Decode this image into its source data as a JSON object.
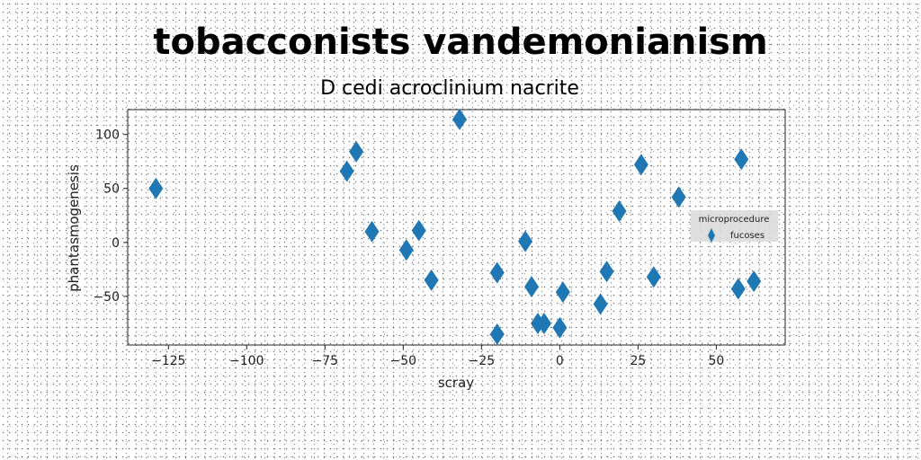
{
  "chart_data": {
    "type": "scatter",
    "title": "tobacconists vandemonianism",
    "subtitle": "D cedi acroclinium nacrite",
    "xlabel": "scray",
    "ylabel": "phantasmogenesis",
    "xlim": [
      -138,
      72
    ],
    "ylim": [
      -95,
      123
    ],
    "xticks": [
      -125,
      -100,
      -75,
      -50,
      -25,
      0,
      25,
      50
    ],
    "yticks": [
      100,
      50,
      0,
      -50
    ],
    "marker": "diamond",
    "color": "#1f77b4",
    "grid": false,
    "legend": {
      "title": "microprocedure",
      "placement": "right"
    },
    "series": [
      {
        "name": "fucoses",
        "points": [
          [
            -129,
            50
          ],
          [
            -68,
            66
          ],
          [
            -65,
            84
          ],
          [
            -60,
            10
          ],
          [
            -49,
            -7
          ],
          [
            -45,
            11
          ],
          [
            -41,
            -35
          ],
          [
            -32,
            114
          ],
          [
            -20,
            -28
          ],
          [
            -20,
            -85
          ],
          [
            -11,
            1
          ],
          [
            -9,
            -41
          ],
          [
            -7,
            -75
          ],
          [
            -5,
            -75
          ],
          [
            0,
            -79
          ],
          [
            1,
            -46
          ],
          [
            13,
            -57
          ],
          [
            15,
            -27
          ],
          [
            19,
            29
          ],
          [
            26,
            72
          ],
          [
            30,
            -32
          ],
          [
            38,
            42
          ],
          [
            57,
            -43
          ],
          [
            58,
            77
          ],
          [
            62,
            -36
          ]
        ]
      }
    ]
  }
}
